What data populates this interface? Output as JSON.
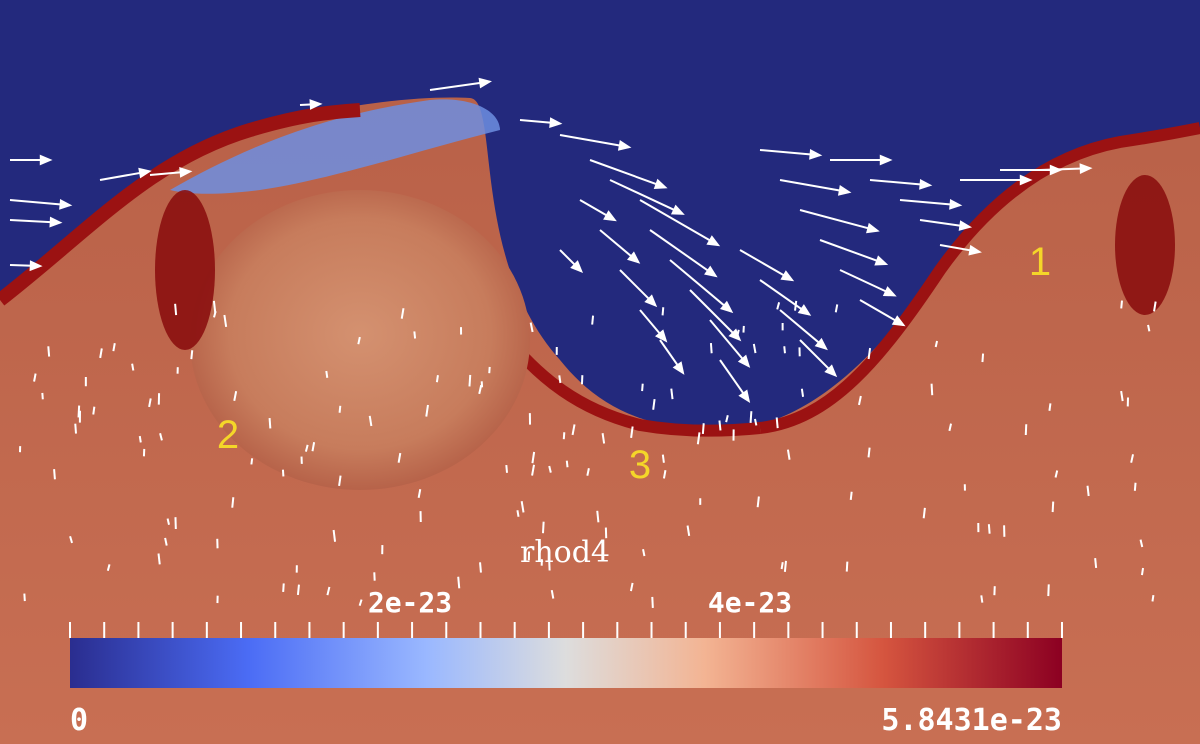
{
  "colorbar": {
    "title": "rhod4",
    "min_label": "0",
    "max_label": "5.8431e-23",
    "mid_labels": [
      "2e-23",
      "4e-23"
    ],
    "min_value": 0,
    "max_value": 5.8431e-23,
    "tick_values": [
      2e-23,
      4e-23
    ],
    "colormap": [
      "#2a2d8f",
      "#4b6cf5",
      "#9ab8ff",
      "#dddddd",
      "#f3b493",
      "#d5553f",
      "#8c0022"
    ]
  },
  "markers": [
    {
      "label": "1"
    },
    {
      "label": "2"
    },
    {
      "label": "3"
    }
  ],
  "colors": {
    "background_low": "#23297d",
    "background_high": "#c06a4d",
    "dense_shell": "#9b1212",
    "arrows": "#ffffff",
    "marker_text": "#f4d629",
    "label_text": "#ffffff"
  }
}
